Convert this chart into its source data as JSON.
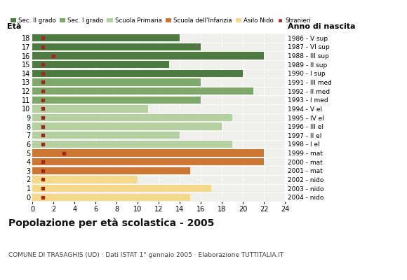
{
  "ages": [
    0,
    1,
    2,
    3,
    4,
    5,
    6,
    7,
    8,
    9,
    10,
    11,
    12,
    13,
    14,
    15,
    16,
    17,
    18
  ],
  "years": [
    "2004 - nido",
    "2003 - nido",
    "2002 - nido",
    "2001 - mat",
    "2000 - mat",
    "1999 - mat",
    "1998 - I el",
    "1997 - II el",
    "1996 - III el",
    "1995 - IV el",
    "1994 - V el",
    "1993 - I med",
    "1992 - II med",
    "1991 - III med",
    "1990 - I sup",
    "1989 - II sup",
    "1988 - III sup",
    "1987 - VI sup",
    "1986 - V sup"
  ],
  "bar_values": [
    15,
    17,
    10,
    15,
    22,
    22,
    19,
    14,
    18,
    19,
    11,
    16,
    21,
    16,
    20,
    13,
    22,
    16,
    14
  ],
  "bar_colors": [
    "#f5d98b",
    "#f5d98b",
    "#f5d98b",
    "#cc7733",
    "#cc7733",
    "#cc7733",
    "#b5d0a0",
    "#b5d0a0",
    "#b5d0a0",
    "#b5d0a0",
    "#b5d0a0",
    "#7fa86b",
    "#7fa86b",
    "#7fa86b",
    "#4d7a40",
    "#4d7a40",
    "#4d7a40",
    "#4d7a40",
    "#4d7a40"
  ],
  "stranieri_x": [
    1,
    1,
    1,
    1,
    1,
    3,
    1,
    1,
    1,
    1,
    1,
    1,
    1,
    1,
    1,
    1,
    2,
    1,
    1
  ],
  "stranieri_color": "#aa2222",
  "legend_labels": [
    "Sec. II grado",
    "Sec. I grado",
    "Scuola Primaria",
    "Scuola dell'Infanzia",
    "Asilo Nido",
    "Stranieri"
  ],
  "legend_colors": [
    "#4d7a40",
    "#7fa86b",
    "#b5d0a0",
    "#cc7733",
    "#f5d98b",
    "#aa2222"
  ],
  "title": "Popolazione per età scolastica - 2005",
  "subtitle": "COMUNE DI TRASAGHIS (UD) · Dati ISTAT 1° gennaio 2005 · Elaborazione TUTTITALIA.IT",
  "xlabel_eta": "Età",
  "xlabel_anno": "Anno di nascita",
  "xlim": [
    0,
    24
  ],
  "xticks": [
    0,
    2,
    4,
    6,
    8,
    10,
    12,
    14,
    16,
    18,
    20,
    22,
    24
  ],
  "bg_color": "#ffffff",
  "plot_bg_color": "#efefeb",
  "bar_height": 0.82
}
